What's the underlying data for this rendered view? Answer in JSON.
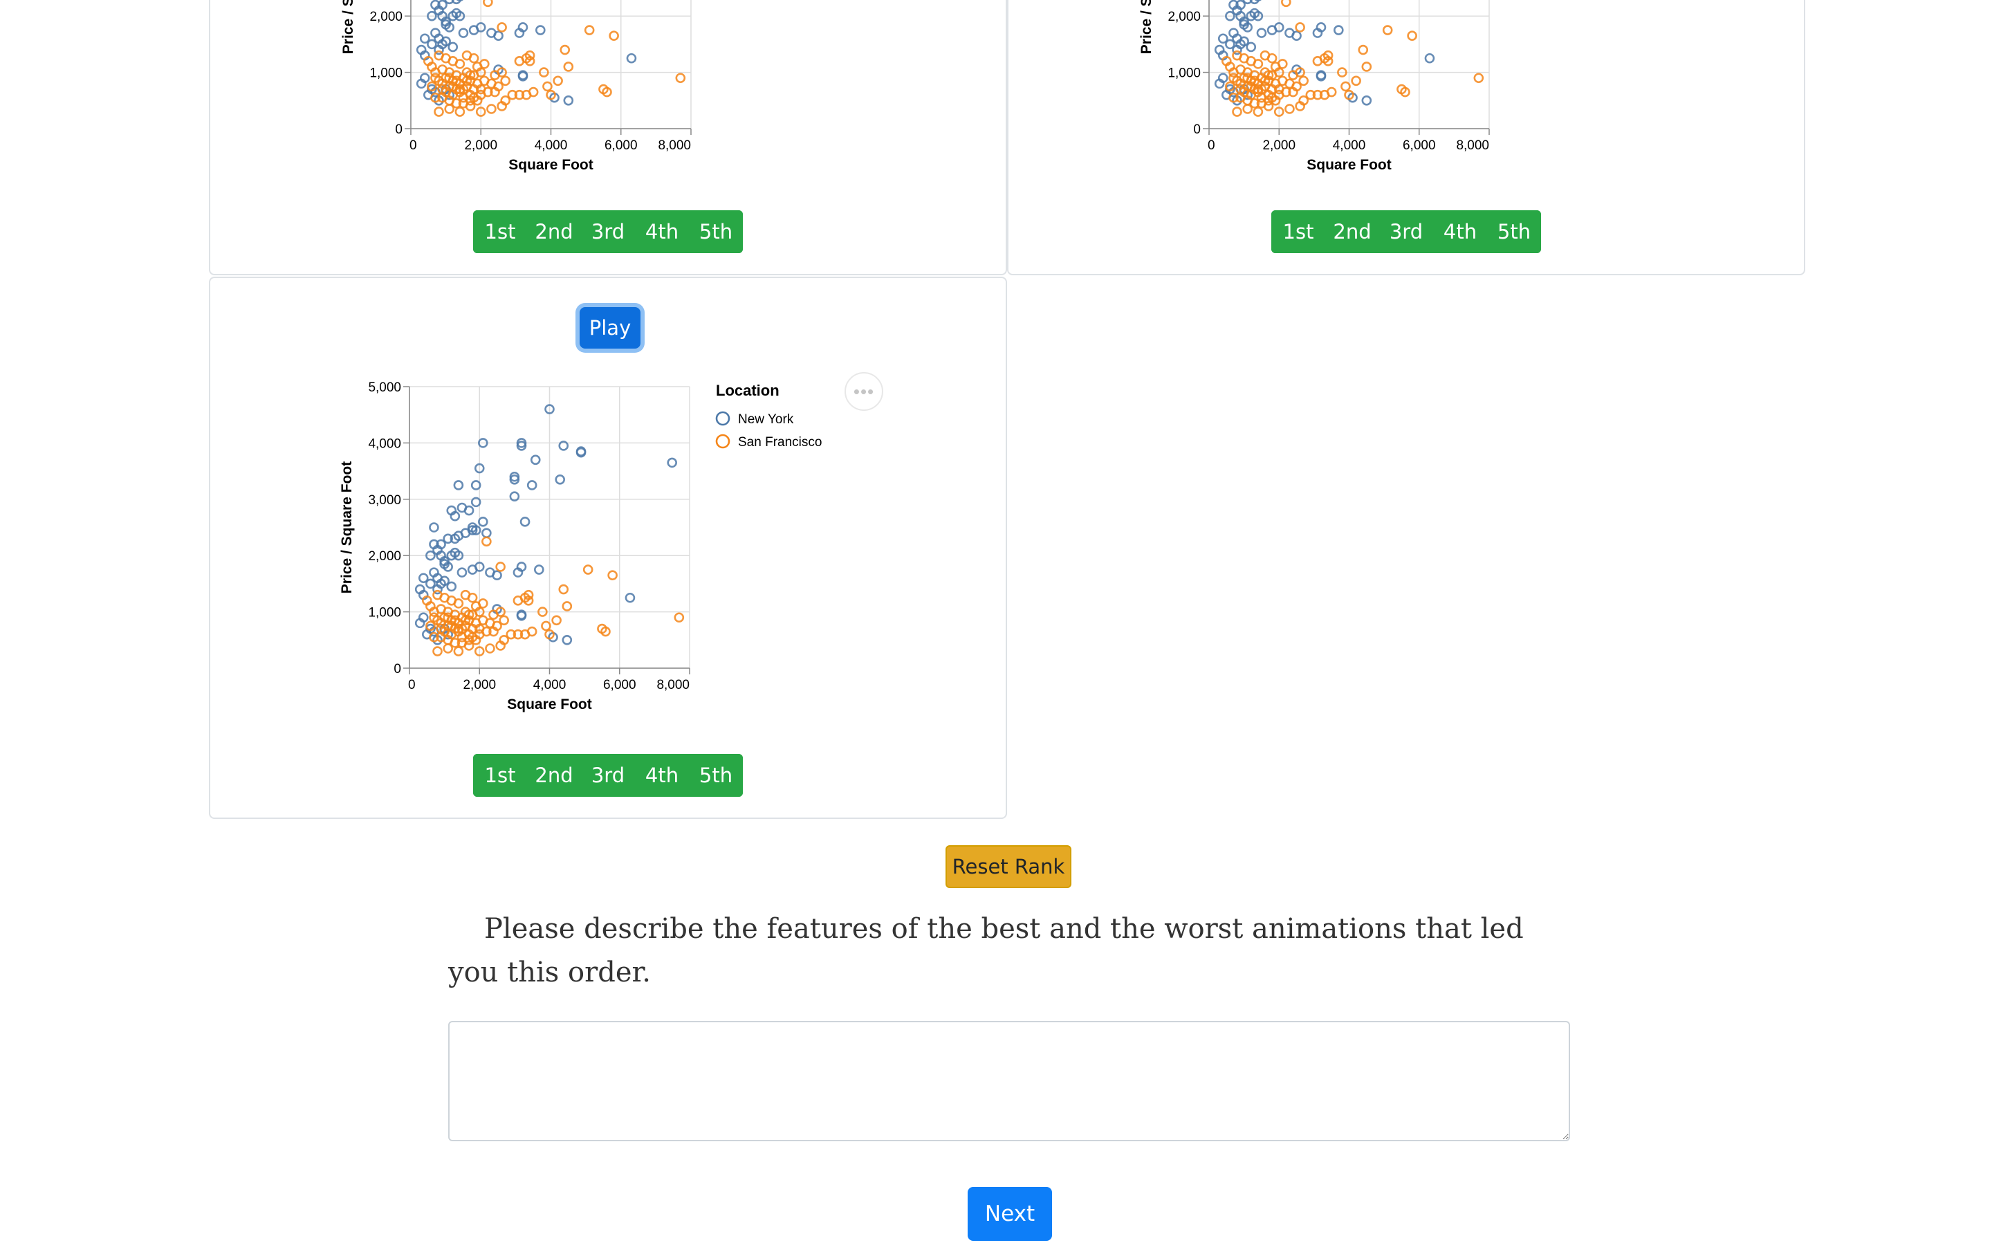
{
  "chart_data": [
    {
      "type": "scatter",
      "panel": 1,
      "xlabel": "Square Foot",
      "ylabel": "Price / Square Foot",
      "x_ticks": [
        "0",
        "2,000",
        "4,000",
        "6,000",
        "8,000"
      ],
      "y_ticks": [
        "0",
        "1,000",
        "2,000"
      ],
      "xlim": [
        0,
        8000
      ],
      "ylim": [
        0,
        5000
      ],
      "grid": true,
      "legend": null,
      "colors": {
        "New York": "#4c78a8",
        "San Francisco": "#f58518"
      }
    },
    {
      "type": "scatter",
      "panel": 2,
      "xlabel": "Square Foot",
      "ylabel": "Price / Square Foot",
      "x_ticks": [
        "0",
        "2,000",
        "4,000",
        "6,000",
        "8,000"
      ],
      "y_ticks": [
        "0",
        "1,000",
        "2,000"
      ],
      "xlim": [
        0,
        8000
      ],
      "ylim": [
        0,
        5000
      ],
      "grid": true,
      "legend": null,
      "colors": {
        "New York": "#4c78a8",
        "San Francisco": "#f58518"
      }
    },
    {
      "type": "scatter",
      "panel": 3,
      "xlabel": "Square Foot",
      "ylabel": "Price / Square Foot",
      "x_ticks": [
        "0",
        "2,000",
        "4,000",
        "6,000",
        "8,000"
      ],
      "y_ticks": [
        "0",
        "1,000",
        "2,000",
        "3,000",
        "4,000",
        "5,000"
      ],
      "xlim": [
        0,
        8000
      ],
      "ylim": [
        0,
        5000
      ],
      "grid": true,
      "legend": {
        "title": "Location",
        "position": "right",
        "items": [
          "New York",
          "San Francisco"
        ]
      },
      "colors": {
        "New York": "#4c78a8",
        "San Francisco": "#f58518"
      },
      "series": [
        {
          "name": "New York",
          "points": [
            [
              4000,
              4600
            ],
            [
              2100,
              4000
            ],
            [
              3200,
              4000
            ],
            [
              3200,
              3950
            ],
            [
              4400,
              3950
            ],
            [
              4900,
              3850
            ],
            [
              4900,
              3830
            ],
            [
              7500,
              3650
            ],
            [
              2000,
              3550
            ],
            [
              3600,
              3700
            ],
            [
              1400,
              3250
            ],
            [
              1900,
              3250
            ],
            [
              3000,
              3400
            ],
            [
              3000,
              3350
            ],
            [
              4300,
              3350
            ],
            [
              1900,
              2950
            ],
            [
              3000,
              3050
            ],
            [
              3500,
              3250
            ],
            [
              1500,
              2850
            ],
            [
              1200,
              2800
            ],
            [
              1700,
              2800
            ],
            [
              1300,
              2700
            ],
            [
              3300,
              2600
            ],
            [
              2100,
              2600
            ],
            [
              1800,
              2500
            ],
            [
              2200,
              2400
            ],
            [
              700,
              2500
            ],
            [
              1800,
              2450
            ],
            [
              1900,
              2450
            ],
            [
              1600,
              2400
            ],
            [
              1400,
              2350
            ],
            [
              1300,
              2300
            ],
            [
              1100,
              2300
            ],
            [
              900,
              2200
            ],
            [
              700,
              2200
            ],
            [
              800,
              2100
            ],
            [
              1200,
              2000
            ],
            [
              600,
              2000
            ],
            [
              900,
              2000
            ],
            [
              1000,
              1900
            ],
            [
              1000,
              1850
            ],
            [
              1300,
              2050
            ],
            [
              1400,
              2000
            ],
            [
              2000,
              1800
            ],
            [
              1500,
              1700
            ],
            [
              1800,
              1750
            ],
            [
              3200,
              1800
            ],
            [
              3100,
              1700
            ],
            [
              2300,
              1700
            ],
            [
              2500,
              1650
            ],
            [
              3700,
              1750
            ],
            [
              400,
              1600
            ],
            [
              600,
              1500
            ],
            [
              700,
              1700
            ],
            [
              800,
              1600
            ],
            [
              1100,
              1800
            ],
            [
              300,
              1400
            ],
            [
              400,
              1300
            ],
            [
              800,
              1400
            ],
            [
              900,
              1500
            ],
            [
              1000,
              1550
            ],
            [
              1200,
              1450
            ],
            [
              6300,
              1250
            ],
            [
              2500,
              1050
            ],
            [
              3200,
              950
            ],
            [
              3200,
              930
            ],
            [
              400,
              900
            ],
            [
              300,
              800
            ],
            [
              500,
              600
            ],
            [
              800,
              500
            ],
            [
              4100,
              550
            ],
            [
              4500,
              500
            ],
            [
              600,
              700
            ],
            [
              700,
              650
            ],
            [
              1000,
              700
            ],
            [
              1100,
              600
            ]
          ]
        },
        {
          "name": "San Francisco",
          "points": [
            [
              5100,
              1750
            ],
            [
              5800,
              1650
            ],
            [
              4400,
              1400
            ],
            [
              4500,
              1100
            ],
            [
              3400,
              1300
            ],
            [
              3100,
              1200
            ],
            [
              3400,
              1200
            ],
            [
              3300,
              1250
            ],
            [
              2200,
              2250
            ],
            [
              2600,
              1800
            ],
            [
              3800,
              1000
            ],
            [
              4200,
              850
            ],
            [
              5500,
              700
            ],
            [
              5600,
              650
            ],
            [
              7700,
              900
            ],
            [
              3900,
              750
            ],
            [
              4000,
              600
            ],
            [
              3300,
              600
            ],
            [
              3100,
              600
            ],
            [
              2900,
              600
            ],
            [
              2700,
              500
            ],
            [
              2600,
              400
            ],
            [
              3500,
              650
            ],
            [
              2400,
              650
            ],
            [
              2000,
              300
            ],
            [
              1900,
              500
            ],
            [
              800,
              300
            ],
            [
              1100,
              350
            ],
            [
              1400,
              300
            ],
            [
              1700,
              400
            ],
            [
              2300,
              350
            ],
            [
              500,
              1200
            ],
            [
              600,
              1100
            ],
            [
              700,
              1000
            ],
            [
              700,
              900
            ],
            [
              800,
              850
            ],
            [
              900,
              800
            ],
            [
              900,
              700
            ],
            [
              1000,
              900
            ],
            [
              1000,
              650
            ],
            [
              1100,
              750
            ],
            [
              1100,
              1000
            ],
            [
              1200,
              850
            ],
            [
              1200,
              600
            ],
            [
              1300,
              700
            ],
            [
              1300,
              950
            ],
            [
              1400,
              800
            ],
            [
              1400,
              650
            ],
            [
              1500,
              900
            ],
            [
              1500,
              550
            ],
            [
              1600,
              750
            ],
            [
              1600,
              1000
            ],
            [
              1700,
              850
            ],
            [
              1700,
              600
            ],
            [
              1800,
              700
            ],
            [
              1800,
              950
            ],
            [
              1900,
              800
            ],
            [
              1900,
              1100
            ],
            [
              2000,
              700
            ],
            [
              2000,
              1000
            ],
            [
              2100,
              850
            ],
            [
              2200,
              650
            ],
            [
              2300,
              800
            ],
            [
              2400,
              950
            ],
            [
              2500,
              750
            ],
            [
              2600,
              1000
            ],
            [
              2700,
              850
            ],
            [
              800,
              1300
            ],
            [
              1000,
              1250
            ],
            [
              1200,
              1200
            ],
            [
              1400,
              1150
            ],
            [
              1600,
              1300
            ],
            [
              1800,
              1250
            ],
            [
              900,
              550
            ],
            [
              1100,
              500
            ],
            [
              1300,
              450
            ],
            [
              1500,
              450
            ],
            [
              1700,
              500
            ],
            [
              1200,
              750
            ],
            [
              1400,
              700
            ],
            [
              1300,
              850
            ],
            [
              1500,
              700
            ],
            [
              1600,
              850
            ],
            [
              1100,
              900
            ],
            [
              1700,
              950
            ],
            [
              900,
              1050
            ],
            [
              2100,
              1150
            ],
            [
              600,
              750
            ],
            [
              700,
              550
            ],
            [
              2000,
              600
            ],
            [
              1800,
              550
            ]
          ]
        }
      ]
    }
  ],
  "panels": [
    {
      "rank_labels": [
        "1st",
        "2nd",
        "3rd",
        "4th",
        "5th"
      ]
    },
    {
      "rank_labels": [
        "1st",
        "2nd",
        "3rd",
        "4th",
        "5th"
      ]
    },
    {
      "play_label": "Play",
      "menu_icon": "ellipsis-icon",
      "rank_labels": [
        "1st",
        "2nd",
        "3rd",
        "4th",
        "5th"
      ]
    }
  ],
  "controls": {
    "reset_label": "Reset Rank",
    "question": "Please describe the features of the best and the worst animations that led you this order.",
    "answer_value": "",
    "next_label": "Next"
  },
  "colors": {
    "rank_green": "#28a745",
    "play_blue": "#0d6edc",
    "reset_yellow": "#e4a823",
    "next_blue": "#0d7ef8"
  }
}
